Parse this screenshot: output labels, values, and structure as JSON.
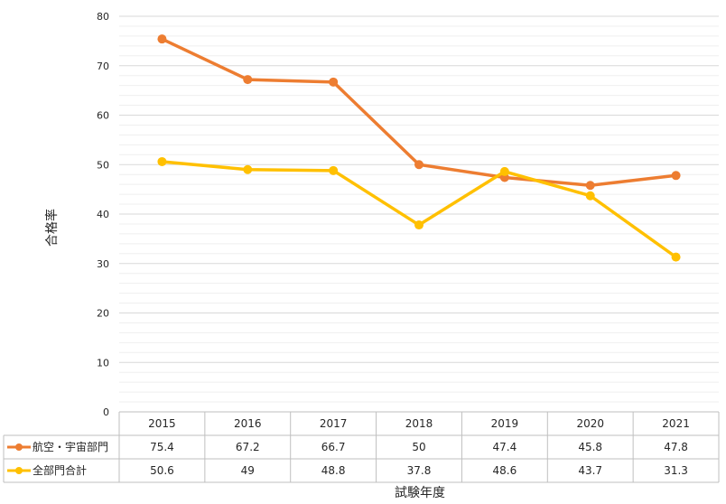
{
  "chart_data": {
    "type": "line",
    "categories": [
      "2015",
      "2016",
      "2017",
      "2018",
      "2019",
      "2020",
      "2021"
    ],
    "series": [
      {
        "name": "航空・宇宙部門",
        "values": [
          75.4,
          67.2,
          66.7,
          50,
          47.4,
          45.8,
          47.8
        ],
        "labels": [
          "75.4",
          "67.2",
          "66.7",
          "50",
          "47.4",
          "45.8",
          "47.8"
        ],
        "color": "#ED7D31"
      },
      {
        "name": "全部門合計",
        "values": [
          50.6,
          49,
          48.8,
          37.8,
          48.6,
          43.7,
          31.3
        ],
        "labels": [
          "50.6",
          "49",
          "48.8",
          "37.8",
          "48.6",
          "43.7",
          "31.3"
        ],
        "color": "#FFC000"
      }
    ],
    "ylabel": "合格率",
    "xlabel": "試験年度",
    "ylim": [
      0,
      80
    ],
    "yticks": [
      "0",
      "10",
      "20",
      "30",
      "40",
      "50",
      "60",
      "70",
      "80"
    ],
    "grid": true,
    "legend": "data-table",
    "title": ""
  }
}
